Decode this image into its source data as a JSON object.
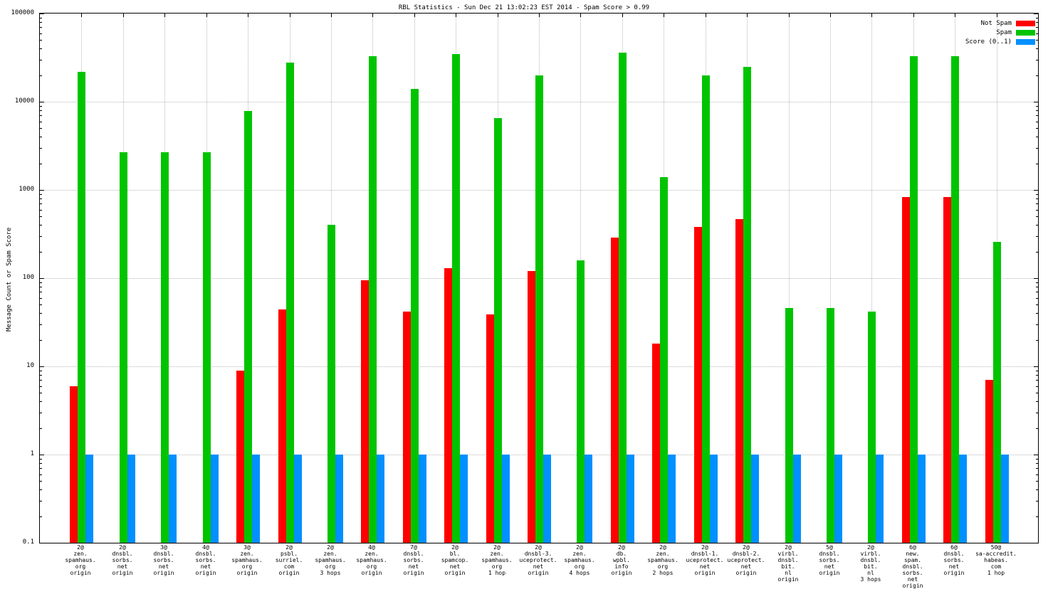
{
  "chart_data": {
    "type": "bar",
    "title": "RBL Statistics - Sun Dec 21 13:02:23 EST 2014 - Spam Score > 0.99",
    "ylabel": "Message Count or Spam Score",
    "yscale": "log",
    "ylim": [
      0.1,
      100000
    ],
    "grid": true,
    "legend_position": "top-right",
    "yticks": [
      {
        "label": "0.1",
        "value": 0.1
      },
      {
        "label": "1",
        "value": 1
      },
      {
        "label": "10",
        "value": 10
      },
      {
        "label": "100",
        "value": 100
      },
      {
        "label": "1000",
        "value": 1000
      },
      {
        "label": "10000",
        "value": 10000
      },
      {
        "label": "100000",
        "value": 100000
      }
    ],
    "categories": [
      [
        "2@",
        "zen.",
        "spamhaus.",
        "org",
        "origin"
      ],
      [
        "2@",
        "dnsbl.",
        "sorbs.",
        "net",
        "origin"
      ],
      [
        "3@",
        "dnsbl.",
        "sorbs.",
        "net",
        "origin"
      ],
      [
        "4@",
        "dnsbl.",
        "sorbs.",
        "net",
        "origin"
      ],
      [
        "3@",
        "zen.",
        "spamhaus.",
        "org",
        "origin"
      ],
      [
        "2@",
        "psbl.",
        "surriel.",
        "com",
        "origin"
      ],
      [
        "2@",
        "zen.",
        "spamhaus.",
        "org",
        "3 hops"
      ],
      [
        "4@",
        "zen.",
        "spamhaus.",
        "org",
        "origin"
      ],
      [
        "7@",
        "dnsbl.",
        "sorbs.",
        "net",
        "origin"
      ],
      [
        "2@",
        "bl.",
        "spamcop.",
        "net",
        "origin"
      ],
      [
        "2@",
        "zen.",
        "spamhaus.",
        "org",
        "1 hop"
      ],
      [
        "2@",
        "dnsbl-3.",
        "uceprotect.",
        "net",
        "origin"
      ],
      [
        "2@",
        "zen.",
        "spamhaus.",
        "org",
        "4 hops"
      ],
      [
        "2@",
        "db.",
        "wpbl.",
        "info",
        "origin"
      ],
      [
        "2@",
        "zen.",
        "spamhaus.",
        "org",
        "2 hops"
      ],
      [
        "2@",
        "dnsbl-1.",
        "uceprotect.",
        "net",
        "origin"
      ],
      [
        "2@",
        "dnsbl-2.",
        "uceprotect.",
        "net",
        "origin"
      ],
      [
        "2@",
        "virbl.",
        "dnsbl.",
        "bit.",
        "nl",
        "origin"
      ],
      [
        "5@",
        "dnsbl.",
        "sorbs.",
        "net",
        "origin"
      ],
      [
        "2@",
        "virbl.",
        "dnsbl.",
        "bit.",
        "nl",
        "3 hops"
      ],
      [
        "6@",
        "new.",
        "spam.",
        "dnsbl.",
        "sorbs.",
        "net",
        "origin"
      ],
      [
        "6@",
        "dnsbl.",
        "sorbs.",
        "net",
        "origin"
      ],
      [
        "50@",
        "sa-accredit.",
        "habeas.",
        "com",
        "1 hop"
      ]
    ],
    "series": [
      {
        "name": "Not Spam",
        "color": "#ff0000",
        "values": [
          6,
          null,
          null,
          null,
          9,
          44,
          null,
          95,
          42,
          130,
          39,
          120,
          null,
          290,
          18,
          380,
          470,
          null,
          null,
          null,
          830,
          830,
          7
        ]
      },
      {
        "name": "Spam",
        "color": "#00c400",
        "values": [
          22000,
          2700,
          2700,
          2700,
          7800,
          28000,
          400,
          33000,
          14000,
          35000,
          6500,
          20000,
          160,
          36000,
          1400,
          20000,
          25000,
          46,
          46,
          42,
          33000,
          33000,
          260
        ]
      },
      {
        "name": "Score (0..1)",
        "color": "#0090ff",
        "values": [
          1,
          1,
          1,
          1,
          1,
          1,
          1,
          1,
          1,
          1,
          1,
          1,
          1,
          1,
          1,
          1,
          1,
          1,
          1,
          1,
          1,
          1,
          1
        ]
      }
    ]
  }
}
